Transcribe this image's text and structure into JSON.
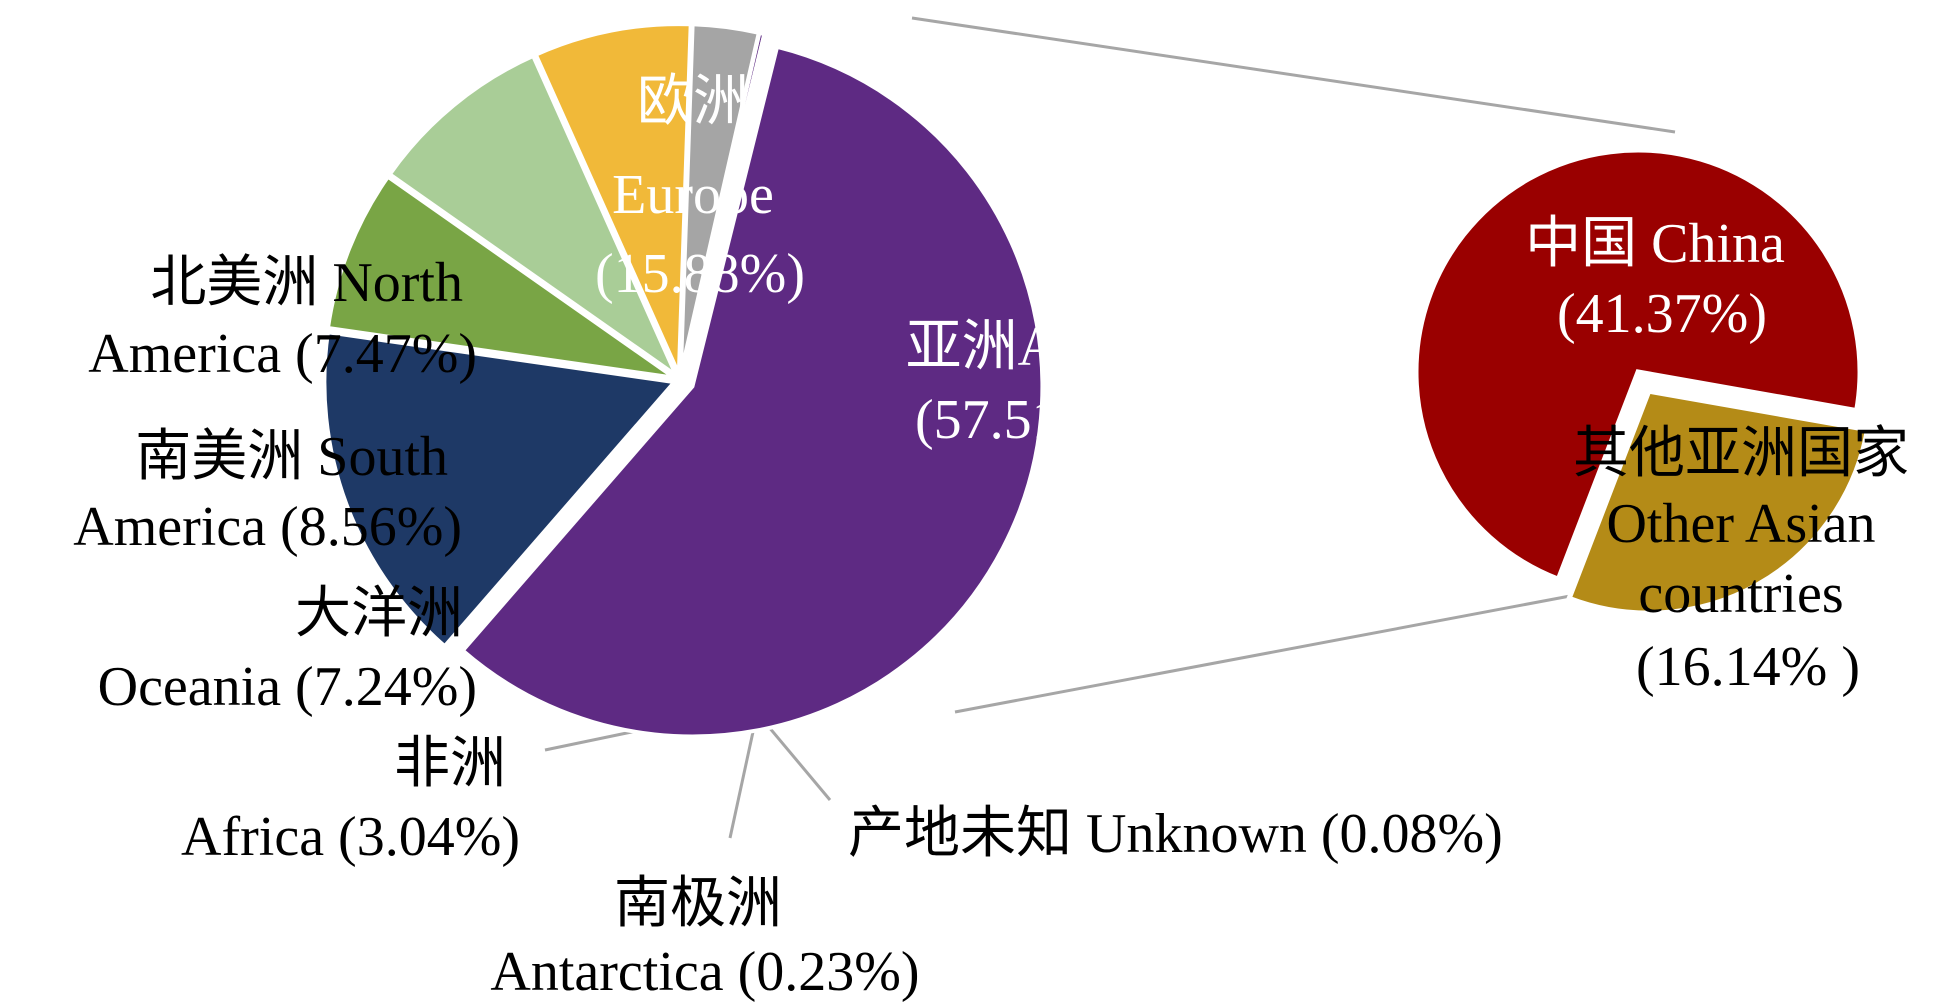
{
  "chart_data": [
    {
      "type": "pie",
      "title": "",
      "slices": [
        {
          "key": "asia",
          "label_lines": [
            "亚洲Asia",
            "(57.51%)"
          ],
          "value": 57.51,
          "color": "#5e2a83",
          "exploded": true
        },
        {
          "key": "europe",
          "label_lines": [
            "欧洲",
            "Europe",
            "(15.88%)"
          ],
          "value": 15.88,
          "color": "#1e3966"
        },
        {
          "key": "north-america",
          "label_lines": [
            "北美洲 North",
            "America (7.47%)"
          ],
          "value": 7.47,
          "color": "#79a545"
        },
        {
          "key": "south-america",
          "label_lines": [
            "南美洲 South",
            "America (8.56%)"
          ],
          "value": 8.56,
          "color": "#a9cd97"
        },
        {
          "key": "oceania",
          "label_lines": [
            "大洋洲",
            "Oceania (7.24%)"
          ],
          "value": 7.24,
          "color": "#f1b939"
        },
        {
          "key": "africa",
          "label_lines": [
            "非洲",
            "Africa (3.04%)"
          ],
          "value": 3.04,
          "color": "#a5a5a5"
        },
        {
          "key": "antarctica",
          "label_lines": [
            "南极洲",
            "Antarctica (0.23%)"
          ],
          "value": 0.23,
          "color": "#5e2a83"
        },
        {
          "key": "unknown",
          "label_lines": [
            "产地未知 Unknown (0.08%)"
          ],
          "value": 0.08,
          "color": "#5e2a83"
        }
      ]
    },
    {
      "type": "pie",
      "title": "",
      "slices": [
        {
          "key": "china",
          "label_lines": [
            "中国 China",
            "(41.37%)"
          ],
          "value": 41.37,
          "color": "#9a0000"
        },
        {
          "key": "other-asian",
          "label_lines": [
            "其他亚洲国家",
            "Other Asian",
            "countries",
            "(16.14% )"
          ],
          "value": 16.14,
          "color": "#b48b17",
          "exploded": true
        }
      ]
    }
  ]
}
